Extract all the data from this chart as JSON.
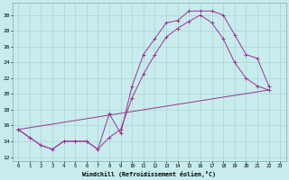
{
  "xlabel": "Windchill (Refroidissement éolien,°C)",
  "bg_color": "#c8ecec",
  "grid_color": "#a8d4d4",
  "line_color": "#993399",
  "xlim": [
    -0.5,
    23.5
  ],
  "ylim": [
    11.5,
    31.5
  ],
  "xticks": [
    0,
    1,
    2,
    3,
    4,
    5,
    6,
    7,
    8,
    9,
    10,
    11,
    12,
    13,
    14,
    15,
    16,
    17,
    18,
    19,
    20,
    21,
    22,
    23
  ],
  "yticks": [
    12,
    14,
    16,
    18,
    20,
    22,
    24,
    26,
    28,
    30
  ],
  "curve1_x": [
    0,
    1,
    2,
    3,
    4,
    5,
    6,
    7,
    8,
    9,
    10,
    11,
    12,
    13,
    14,
    15,
    16,
    17,
    18,
    19,
    20,
    21,
    22
  ],
  "curve1_y": [
    15.5,
    14.5,
    13.5,
    13.0,
    14.0,
    14.0,
    14.0,
    13.0,
    17.5,
    15.0,
    21.0,
    25.0,
    27.0,
    29.0,
    29.3,
    30.5,
    30.5,
    30.5,
    30.0,
    27.5,
    25.0,
    24.5,
    21.0
  ],
  "curve2_x": [
    0,
    1,
    2,
    3,
    4,
    5,
    6,
    7,
    8,
    9,
    10,
    11,
    12,
    13,
    14,
    15,
    16,
    17,
    18,
    19,
    20,
    21,
    22
  ],
  "curve2_y": [
    15.5,
    14.5,
    13.5,
    13.0,
    14.0,
    14.0,
    14.0,
    13.0,
    14.5,
    15.5,
    19.5,
    22.5,
    25.0,
    27.2,
    28.3,
    29.2,
    30.0,
    29.0,
    27.0,
    24.0,
    22.0,
    21.0,
    20.5
  ],
  "line3_x": [
    0,
    22
  ],
  "line3_y": [
    15.5,
    20.5
  ],
  "font_family": "monospace"
}
